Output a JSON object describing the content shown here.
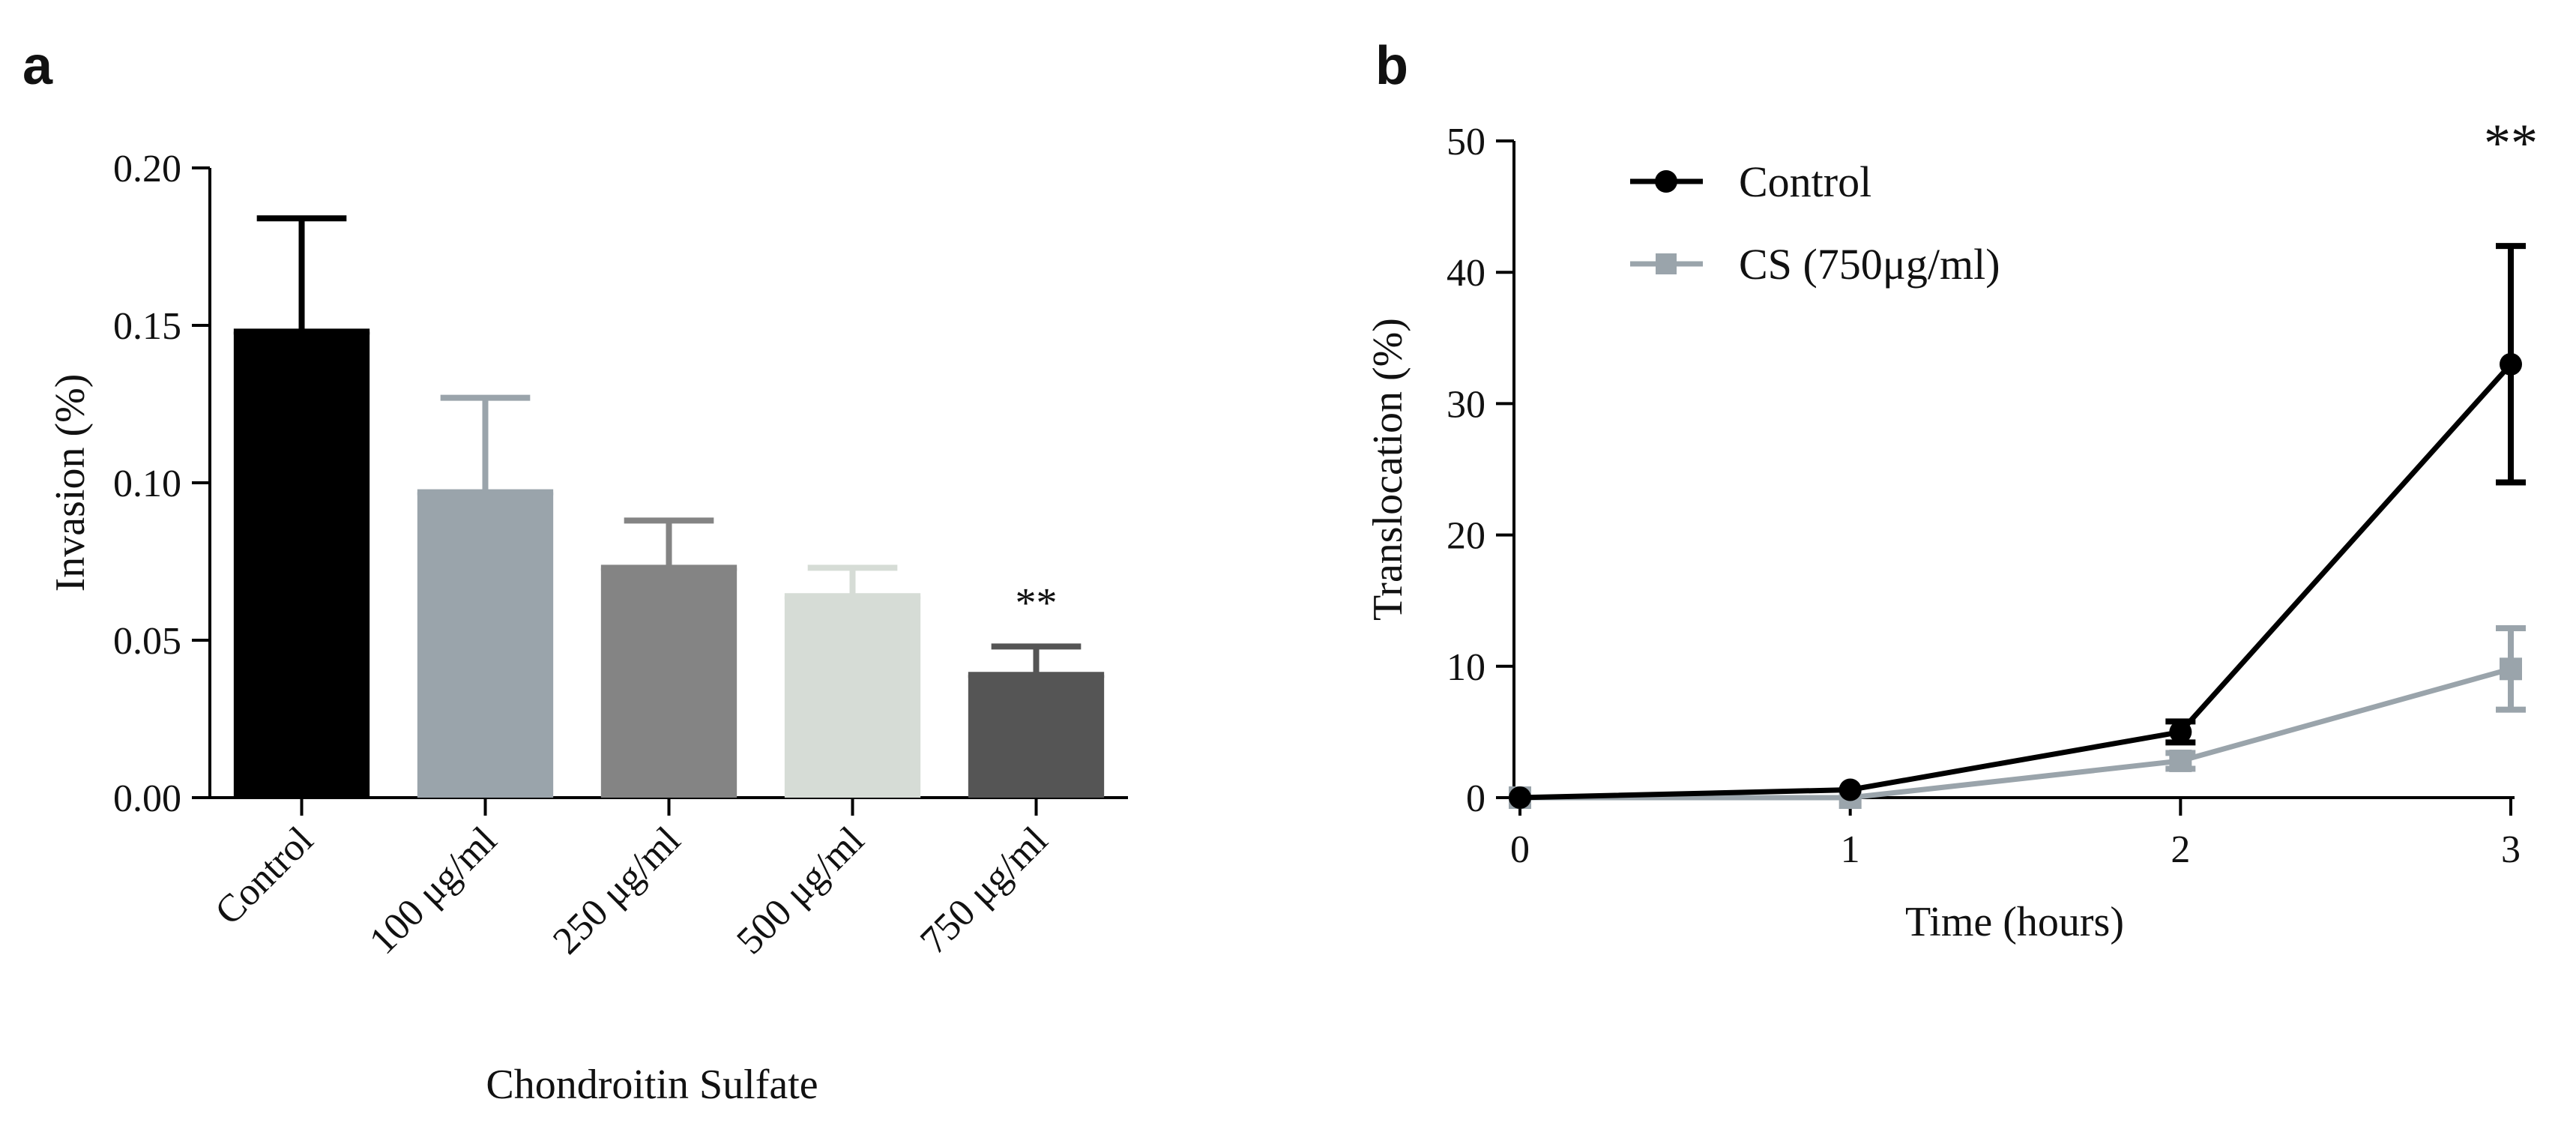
{
  "chart_data": [
    {
      "panel": "a",
      "type": "bar",
      "title": "",
      "xlabel": "Chondroitin Sulfate",
      "ylabel": "Invasion  (%)",
      "categories": [
        "Control",
        "100 μg/ml",
        "250 μg/ml",
        "500 μg/ml",
        "750 μg/ml"
      ],
      "values": [
        0.148,
        0.097,
        0.073,
        0.064,
        0.039
      ],
      "errors": [
        0.036,
        0.03,
        0.015,
        0.009,
        0.009
      ],
      "colors": [
        "#000000",
        "#9aa4ab",
        "#848484",
        "#d6dcd6",
        "#555555"
      ],
      "ylim": [
        0,
        0.2
      ],
      "yticks": [
        "0.00",
        "0.05",
        "0.10",
        "0.15",
        "0.20"
      ],
      "annotations": [
        {
          "category": "750 μg/ml",
          "text": "**"
        }
      ],
      "grid": false
    },
    {
      "panel": "b",
      "type": "line",
      "title": "",
      "xlabel": "Time (hours)",
      "ylabel": "Translocation (%)",
      "x": [
        0,
        1,
        2,
        3
      ],
      "xticks": [
        "0",
        "1",
        "2",
        "3"
      ],
      "yticks": [
        "0",
        "10",
        "20",
        "30",
        "40",
        "50"
      ],
      "xlim": [
        0,
        3
      ],
      "ylim": [
        0,
        50
      ],
      "series": [
        {
          "name": "Control",
          "values": [
            0,
            0.6,
            5.0,
            33.0
          ],
          "errors": [
            0,
            0,
            0.8,
            9.0
          ],
          "color": "#000000",
          "marker": "circle"
        },
        {
          "name": "CS (750μg/ml)",
          "values": [
            0,
            0,
            2.8,
            9.8
          ],
          "errors": [
            0,
            0,
            0.6,
            3.1
          ],
          "color": "#9aa4ab",
          "marker": "square"
        }
      ],
      "annotations": [
        {
          "x": 3,
          "text": "**"
        }
      ],
      "legend": "top-left",
      "grid": false
    }
  ]
}
